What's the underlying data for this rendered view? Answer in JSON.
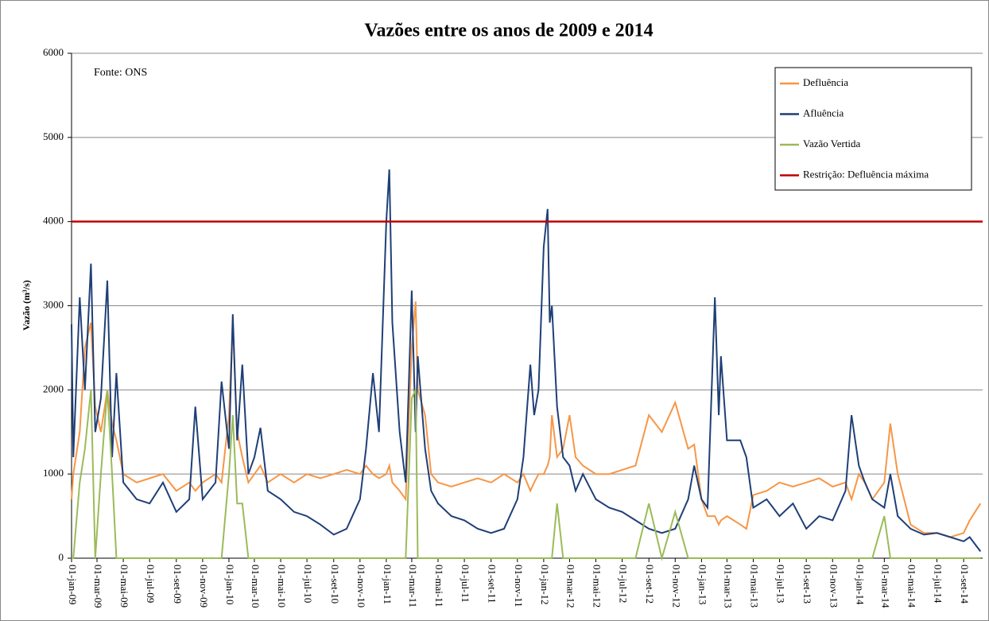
{
  "chart_data": {
    "type": "line",
    "title": "Vazões entre os anos de 2009 e 2014",
    "y_label": "Vazão (m³/s)",
    "annotation": "Fonte: ONS",
    "x": [
      "01-jan-09",
      "05-jan-09",
      "20-jan-09",
      "01-fev-09",
      "15-fev-09",
      "25-fev-09",
      "10-mar-09",
      "25-mar-09",
      "05-abr-09",
      "15-abr-09",
      "01-mai-09",
      "01-jun-09",
      "01-jul-09",
      "01-ago-09",
      "01-set-09",
      "01-out-09",
      "15-out-09",
      "01-nov-09",
      "01-dez-09",
      "15-dez-09",
      "01-jan-10",
      "10-jan-10",
      "20-jan-10",
      "01-fev-10",
      "15-fev-10",
      "01-mar-10",
      "15-mar-10",
      "01-abr-10",
      "01-mai-10",
      "01-jun-10",
      "01-jul-10",
      "01-ago-10",
      "01-set-10",
      "01-out-10",
      "01-nov-10",
      "15-nov-10",
      "01-dez-10",
      "15-dez-10",
      "01-jan-11",
      "08-jan-11",
      "15-jan-11",
      "01-fev-11",
      "15-fev-11",
      "01-mar-11",
      "10-mar-11",
      "15-mar-11",
      "01-abr-11",
      "15-abr-11",
      "01-mai-11",
      "01-jun-11",
      "01-jul-11",
      "01-ago-11",
      "01-set-11",
      "01-out-11",
      "01-nov-11",
      "15-nov-11",
      "01-dez-11",
      "10-dez-11",
      "20-dez-11",
      "01-jan-12",
      "10-jan-12",
      "15-jan-12",
      "20-jan-12",
      "01-fev-12",
      "15-fev-12",
      "01-mar-12",
      "15-mar-12",
      "01-abr-12",
      "01-mai-12",
      "01-jun-12",
      "01-jul-12",
      "01-ago-12",
      "01-set-12",
      "01-out-12",
      "01-nov-12",
      "01-dez-12",
      "15-dez-12",
      "01-jan-13",
      "15-jan-13",
      "01-fev-13",
      "10-fev-13",
      "15-fev-13",
      "01-mar-13",
      "01-abr-13",
      "15-abr-13",
      "01-mai-13",
      "01-jun-13",
      "01-jul-13",
      "01-ago-13",
      "01-set-13",
      "01-out-13",
      "01-nov-13",
      "01-dez-13",
      "15-dez-13",
      "01-jan-14",
      "15-jan-14",
      "01-fev-14",
      "01-mar-14",
      "15-mar-14",
      "01-abr-14",
      "01-mai-14",
      "01-jun-14",
      "01-jul-14",
      "01-ago-14",
      "01-set-14",
      "15-set-14",
      "10-out-14"
    ],
    "series": [
      {
        "name": "Defluência",
        "color": "#f79646",
        "values": [
          700,
          1000,
          1500,
          2500,
          2800,
          1800,
          1500,
          2000,
          1600,
          1400,
          1000,
          900,
          950,
          1000,
          800,
          900,
          800,
          900,
          1000,
          900,
          1700,
          2800,
          1500,
          1200,
          900,
          1000,
          1100,
          900,
          1000,
          900,
          1000,
          950,
          1000,
          1050,
          1000,
          1100,
          1000,
          950,
          1000,
          1100,
          900,
          800,
          700,
          2500,
          3050,
          2000,
          1700,
          1000,
          900,
          850,
          900,
          950,
          900,
          1000,
          900,
          1000,
          800,
          900,
          1000,
          1000,
          1100,
          1200,
          1700,
          1200,
          1300,
          1700,
          1200,
          1100,
          1000,
          1000,
          1050,
          1100,
          1700,
          1500,
          1850,
          1300,
          1350,
          700,
          500,
          500,
          400,
          450,
          500,
          400,
          350,
          750,
          800,
          900,
          850,
          900,
          950,
          850,
          900,
          700,
          1000,
          900,
          700,
          900,
          1600,
          1000,
          400,
          300,
          300,
          250,
          300,
          450,
          650
        ]
      },
      {
        "name": "Afluência",
        "color": "#1f3f77",
        "values": [
          2780,
          1200,
          3100,
          2000,
          3500,
          1500,
          1900,
          3300,
          1200,
          2200,
          900,
          700,
          650,
          900,
          550,
          700,
          1800,
          700,
          900,
          2100,
          1300,
          2900,
          1400,
          2300,
          1000,
          1200,
          1550,
          800,
          700,
          550,
          500,
          400,
          280,
          350,
          700,
          1300,
          2200,
          1500,
          4000,
          4620,
          2800,
          1500,
          900,
          3180,
          1500,
          2400,
          1300,
          800,
          650,
          500,
          450,
          350,
          300,
          350,
          700,
          1200,
          2300,
          1700,
          2000,
          3700,
          4150,
          2800,
          3000,
          1800,
          1200,
          1100,
          800,
          1000,
          700,
          600,
          550,
          450,
          350,
          300,
          350,
          700,
          1100,
          700,
          600,
          3100,
          1700,
          2400,
          1400,
          1400,
          1200,
          600,
          700,
          500,
          650,
          350,
          500,
          450,
          800,
          1700,
          1100,
          900,
          700,
          600,
          1000,
          500,
          350,
          280,
          300,
          250,
          200,
          250,
          80
        ]
      },
      {
        "name": "Vazão Vertida",
        "color": "#9bbb59",
        "values": [
          0,
          0,
          900,
          1300,
          2000,
          0,
          1000,
          2000,
          1000,
          0,
          0,
          0,
          0,
          0,
          0,
          0,
          0,
          0,
          0,
          0,
          1000,
          1700,
          650,
          650,
          0,
          0,
          0,
          0,
          0,
          0,
          0,
          0,
          0,
          0,
          0,
          0,
          0,
          0,
          0,
          0,
          0,
          0,
          0,
          1900,
          2000,
          0,
          0,
          0,
          0,
          0,
          0,
          0,
          0,
          0,
          0,
          0,
          0,
          0,
          0,
          0,
          0,
          0,
          0,
          650,
          0,
          0,
          0,
          0,
          0,
          0,
          0,
          0,
          650,
          0,
          550,
          0,
          0,
          0,
          0,
          0,
          0,
          0,
          0,
          0,
          0,
          0,
          0,
          0,
          0,
          0,
          0,
          0,
          0,
          0,
          0,
          0,
          0,
          500,
          0,
          0,
          0,
          0,
          0,
          0,
          0,
          0,
          0
        ]
      }
    ],
    "reference_line": {
      "name": "Restrição: Defluência máxima",
      "color": "#c00000",
      "value": 4000
    },
    "xlim": [
      "01-jan-09",
      "15-out-14"
    ],
    "xticks": [
      "01-jan-09",
      "01-mar-09",
      "01-mai-09",
      "01-jul-09",
      "01-set-09",
      "01-nov-09",
      "01-jan-10",
      "01-mar-10",
      "01-mai-10",
      "01-jul-10",
      "01-set-10",
      "01-nov-10",
      "01-jan-11",
      "01-mar-11",
      "01-mai-11",
      "01-jul-11",
      "01-set-11",
      "01-nov-11",
      "01-jan-12",
      "01-mar-12",
      "01-mai-12",
      "01-jul-12",
      "01-set-12",
      "01-nov-12",
      "01-jan-13",
      "01-mar-13",
      "01-mai-13",
      "01-jul-13",
      "01-set-13",
      "01-nov-13",
      "01-jan-14",
      "01-mar-14",
      "01-mai-14",
      "01-jul-14",
      "01-set-14"
    ],
    "ylim": [
      0,
      6000
    ],
    "yticks": [
      0,
      1000,
      2000,
      3000,
      4000,
      5000,
      6000
    ],
    "grid": true,
    "legend": "top-right"
  }
}
